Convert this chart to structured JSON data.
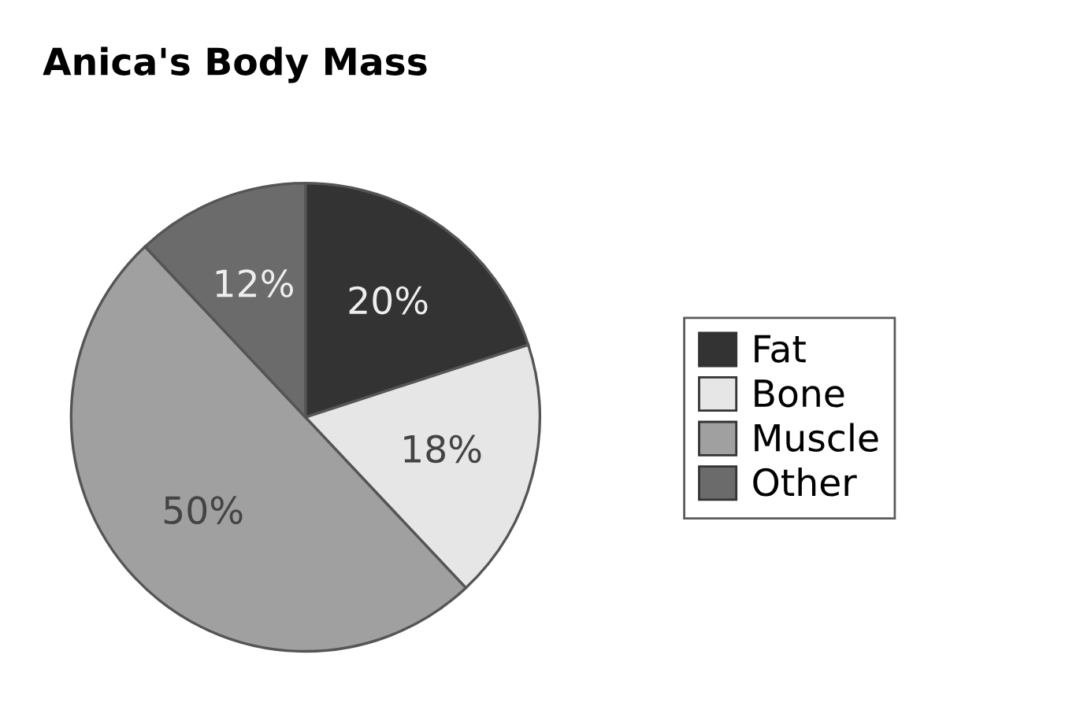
{
  "chart_data": {
    "type": "pie",
    "title": "Anica's Body Mass",
    "categories": [
      "Fat",
      "Bone",
      "Muscle",
      "Other"
    ],
    "values": [
      20,
      18,
      50,
      12
    ],
    "colors": [
      "#333333",
      "#e6e6e6",
      "#a0a0a0",
      "#6b6b6b"
    ],
    "value_labels": [
      "20%",
      "18%",
      "50%",
      "12%"
    ],
    "legend": "right"
  }
}
